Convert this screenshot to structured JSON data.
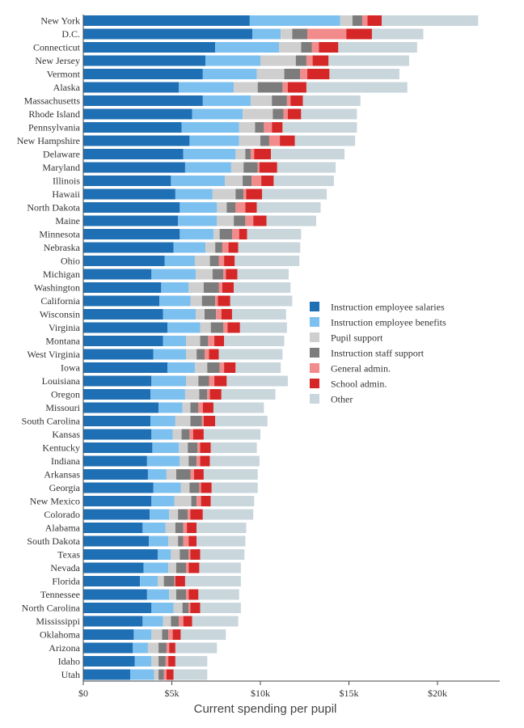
{
  "chart_data": {
    "type": "bar",
    "orientation": "horizontal",
    "stacked": true,
    "xlabel": "Current spending per pupil",
    "xlim": [
      0,
      23500
    ],
    "xticks": [
      0,
      5000,
      10000,
      15000,
      20000
    ],
    "xtick_labels": [
      "$0",
      "$5k",
      "$10k",
      "$15k",
      "$20k"
    ],
    "legend_position": "right",
    "series": [
      {
        "name": "Instruction employee salaries",
        "color": "#1f6fb4"
      },
      {
        "name": "Instruction employee benefits",
        "color": "#7cc0f0"
      },
      {
        "name": "Pupil support",
        "color": "#cfcfcf"
      },
      {
        "name": "Instruction staff support",
        "color": "#7c7c7c"
      },
      {
        "name": "General admin.",
        "color": "#f28b8b"
      },
      {
        "name": "School admin.",
        "color": "#d62728"
      },
      {
        "name": "Other",
        "color": "#c9d6dc"
      }
    ],
    "categories": [
      "New York",
      "D.C.",
      "Connecticut",
      "New Jersey",
      "Vermont",
      "Alaska",
      "Massachusetts",
      "Rhode Island",
      "Pennsylvania",
      "New Hampshire",
      "Delaware",
      "Maryland",
      "Illinois",
      "Hawaii",
      "North Dakota",
      "Maine",
      "Minnesota",
      "Nebraska",
      "Ohio",
      "Michigan",
      "Washington",
      "California",
      "Wisconsin",
      "Virginia",
      "Montana",
      "West Virginia",
      "Iowa",
      "Louisiana",
      "Oregon",
      "Missouri",
      "South Carolina",
      "Kansas",
      "Kentucky",
      "Indiana",
      "Arkansas",
      "Georgia",
      "New Mexico",
      "Colorado",
      "Alabama",
      "South Dakota",
      "Texas",
      "Nevada",
      "Florida",
      "Tennessee",
      "North Carolina",
      "Mississippi",
      "Oklahoma",
      "Arizona",
      "Idaho",
      "Utah"
    ],
    "values": [
      [
        9400,
        5100,
        700,
        550,
        300,
        800,
        5450
      ],
      [
        9550,
        1600,
        650,
        850,
        2200,
        1450,
        2900
      ],
      [
        7450,
        3600,
        1250,
        600,
        400,
        1100,
        4450
      ],
      [
        6900,
        3100,
        2000,
        600,
        350,
        900,
        4550
      ],
      [
        6750,
        3050,
        1550,
        900,
        400,
        1250,
        3950
      ],
      [
        5400,
        3100,
        1350,
        1400,
        300,
        1050,
        5700
      ],
      [
        6750,
        2700,
        1200,
        850,
        200,
        700,
        3250
      ],
      [
        6150,
        2850,
        1700,
        600,
        250,
        750,
        3150
      ],
      [
        5550,
        3250,
        900,
        500,
        450,
        600,
        4200
      ],
      [
        6000,
        2800,
        1200,
        500,
        600,
        850,
        3400
      ],
      [
        5650,
        2950,
        550,
        300,
        200,
        950,
        4150
      ],
      [
        5750,
        2600,
        700,
        800,
        100,
        1000,
        3300
      ],
      [
        4950,
        3050,
        1000,
        500,
        550,
        700,
        3400
      ],
      [
        5200,
        2100,
        1300,
        450,
        150,
        900,
        3650
      ],
      [
        5450,
        2100,
        550,
        500,
        550,
        650,
        3600
      ],
      [
        5350,
        2200,
        950,
        650,
        450,
        750,
        2800
      ],
      [
        5450,
        1900,
        350,
        700,
        400,
        450,
        3050
      ],
      [
        5100,
        1800,
        550,
        400,
        350,
        550,
        3500
      ],
      [
        4600,
        1700,
        850,
        500,
        300,
        600,
        3650
      ],
      [
        3850,
        2500,
        950,
        600,
        150,
        650,
        2900
      ],
      [
        4400,
        1550,
        850,
        850,
        200,
        650,
        3200
      ],
      [
        4300,
        1750,
        650,
        750,
        150,
        700,
        3500
      ],
      [
        4500,
        1850,
        500,
        650,
        300,
        600,
        3050
      ],
      [
        4750,
        1850,
        600,
        700,
        250,
        700,
        2650
      ],
      [
        4500,
        1300,
        800,
        450,
        350,
        550,
        3400
      ],
      [
        3950,
        1850,
        600,
        450,
        250,
        550,
        3600
      ],
      [
        4750,
        1550,
        700,
        700,
        250,
        650,
        2550
      ],
      [
        3850,
        1950,
        700,
        600,
        300,
        700,
        3450
      ],
      [
        3800,
        1950,
        800,
        450,
        150,
        650,
        3050
      ],
      [
        4250,
        1350,
        450,
        450,
        250,
        600,
        2850
      ],
      [
        3800,
        1400,
        850,
        650,
        100,
        650,
        2950
      ],
      [
        3850,
        1200,
        500,
        450,
        200,
        600,
        3200
      ],
      [
        3900,
        1500,
        500,
        550,
        150,
        600,
        2600
      ],
      [
        3600,
        1850,
        500,
        450,
        200,
        550,
        2800
      ],
      [
        3650,
        1050,
        550,
        800,
        200,
        550,
        3050
      ],
      [
        3950,
        1550,
        500,
        550,
        100,
        600,
        2600
      ],
      [
        3850,
        1300,
        950,
        300,
        250,
        550,
        2450
      ],
      [
        3750,
        1100,
        500,
        550,
        150,
        700,
        2850
      ],
      [
        3350,
        1300,
        550,
        450,
        200,
        550,
        2800
      ],
      [
        3700,
        1100,
        550,
        300,
        300,
        450,
        2750
      ],
      [
        4200,
        750,
        500,
        500,
        100,
        550,
        2500
      ],
      [
        3400,
        1400,
        450,
        550,
        150,
        600,
        2350
      ],
      [
        3200,
        1000,
        350,
        600,
        50,
        550,
        3150
      ],
      [
        3600,
        1250,
        400,
        550,
        150,
        550,
        2300
      ],
      [
        3850,
        1250,
        500,
        350,
        100,
        550,
        2300
      ],
      [
        3350,
        1150,
        450,
        450,
        250,
        500,
        2600
      ],
      [
        2850,
        1000,
        600,
        350,
        250,
        450,
        2550
      ],
      [
        2800,
        850,
        600,
        450,
        150,
        350,
        2350
      ],
      [
        2900,
        950,
        400,
        400,
        150,
        400,
        1800
      ],
      [
        2650,
        1350,
        250,
        300,
        150,
        400,
        1900
      ]
    ]
  }
}
